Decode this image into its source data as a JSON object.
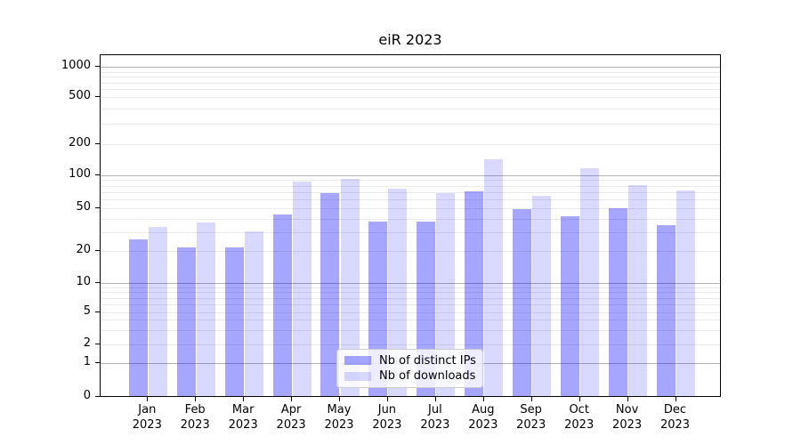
{
  "chart_data": {
    "type": "bar",
    "title": "eiR 2023",
    "categories": [
      "Jan 2023",
      "Feb 2023",
      "Mar 2023",
      "Apr 2023",
      "May 2023",
      "Jun 2023",
      "Jul 2023",
      "Aug 2023",
      "Sep 2023",
      "Oct 2023",
      "Nov 2023",
      "Dec 2023"
    ],
    "series": [
      {
        "name": "Nb of distinct IPs",
        "color": "rgba(0,0,255,0.35)",
        "values": [
          25,
          21,
          21,
          43,
          68,
          37,
          37,
          70,
          48,
          41,
          49,
          34
        ]
      },
      {
        "name": "Nb of downloads",
        "color": "rgba(0,0,255,0.15)",
        "values": [
          33,
          36,
          30,
          85,
          90,
          74,
          67,
          140,
          64,
          115,
          80,
          71
        ]
      }
    ],
    "y_ticks": [
      0,
      1,
      2,
      5,
      10,
      20,
      50,
      100,
      200,
      500,
      1000
    ],
    "y_scale": "symlog",
    "ylim": [
      0,
      1300
    ],
    "xlabel": "",
    "ylabel": "",
    "grid": true,
    "legend_position": "lower center"
  },
  "colors": {
    "major_grid": "#b2b2b2",
    "minor_grid": "#e9e9e9",
    "axis": "#000000",
    "legend_border": "#cccccc",
    "legend_bg": "rgba(255,255,255,0.8)"
  }
}
